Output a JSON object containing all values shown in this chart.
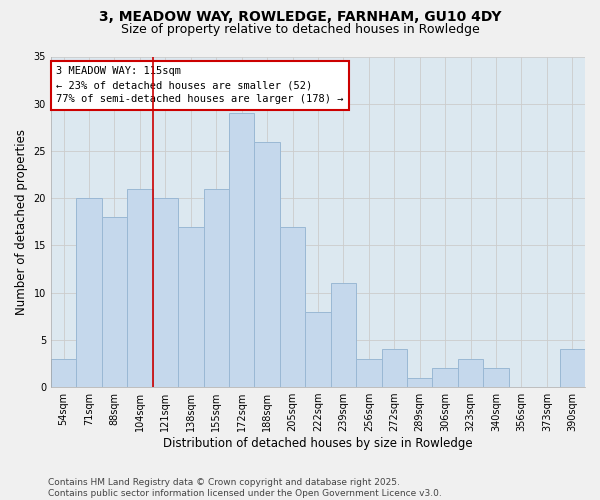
{
  "title": "3, MEADOW WAY, ROWLEDGE, FARNHAM, GU10 4DY",
  "subtitle": "Size of property relative to detached houses in Rowledge",
  "xlabel": "Distribution of detached houses by size in Rowledge",
  "ylabel": "Number of detached properties",
  "categories": [
    "54sqm",
    "71sqm",
    "88sqm",
    "104sqm",
    "121sqm",
    "138sqm",
    "155sqm",
    "172sqm",
    "188sqm",
    "205sqm",
    "222sqm",
    "239sqm",
    "256sqm",
    "272sqm",
    "289sqm",
    "306sqm",
    "323sqm",
    "340sqm",
    "356sqm",
    "373sqm",
    "390sqm"
  ],
  "values": [
    3,
    20,
    18,
    21,
    20,
    17,
    21,
    29,
    26,
    17,
    8,
    11,
    3,
    4,
    1,
    2,
    3,
    2,
    0,
    0,
    4
  ],
  "bar_color": "#c5d8ec",
  "bar_edge_color": "#9ab8d4",
  "vline_x_index": 3.5,
  "vline_color": "#cc0000",
  "annotation_line1": "3 MEADOW WAY: 115sqm",
  "annotation_line2": "← 23% of detached houses are smaller (52)",
  "annotation_line3": "77% of semi-detached houses are larger (178) →",
  "annotation_box_color": "#ffffff",
  "annotation_box_edge_color": "#cc0000",
  "ylim": [
    0,
    35
  ],
  "yticks": [
    0,
    5,
    10,
    15,
    20,
    25,
    30,
    35
  ],
  "grid_color": "#cccccc",
  "bg_color": "#dce8f0",
  "fig_bg_color": "#f0f0f0",
  "footer1": "Contains HM Land Registry data © Crown copyright and database right 2025.",
  "footer2": "Contains public sector information licensed under the Open Government Licence v3.0.",
  "title_fontsize": 10,
  "subtitle_fontsize": 9,
  "tick_fontsize": 7,
  "ylabel_fontsize": 8.5,
  "xlabel_fontsize": 8.5,
  "annotation_fontsize": 7.5,
  "footer_fontsize": 6.5
}
